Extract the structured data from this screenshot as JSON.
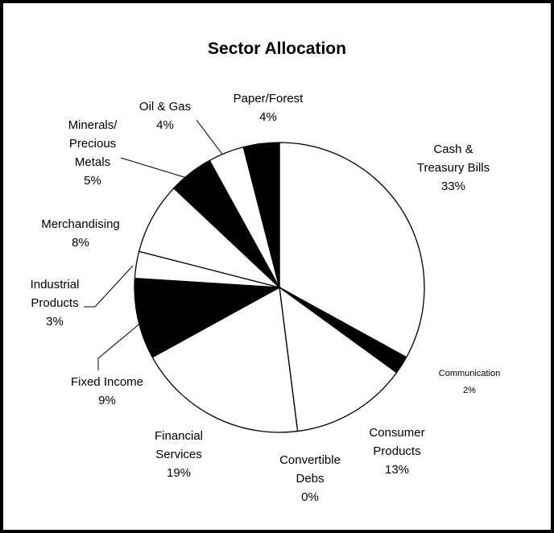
{
  "chart_data": {
    "type": "pie",
    "title": "Sector Allocation",
    "categories": [
      "Cash &\nTreasury Bills",
      "Communication",
      "Consumer\nProducts",
      "Convertible\nDebs",
      "Financial\nServices",
      "Fixed Income",
      "Industrial\nProducts",
      "Merchandising",
      "Minerals/\nPrecious\nMetals",
      "Oil & Gas",
      "Paper/Forest"
    ],
    "values": [
      33,
      2,
      13,
      0,
      19,
      9,
      3,
      8,
      5,
      4,
      4
    ],
    "value_labels": [
      "33%",
      "2%",
      "13%",
      "0%",
      "19%",
      "9%",
      "3%",
      "8%",
      "5%",
      "4%",
      "4%"
    ],
    "colors": [
      "#ffffff",
      "#000000",
      "#ffffff",
      "#ffffff",
      "#ffffff",
      "#000000",
      "#ffffff",
      "#ffffff",
      "#000000",
      "#ffffff",
      "#000000"
    ]
  }
}
